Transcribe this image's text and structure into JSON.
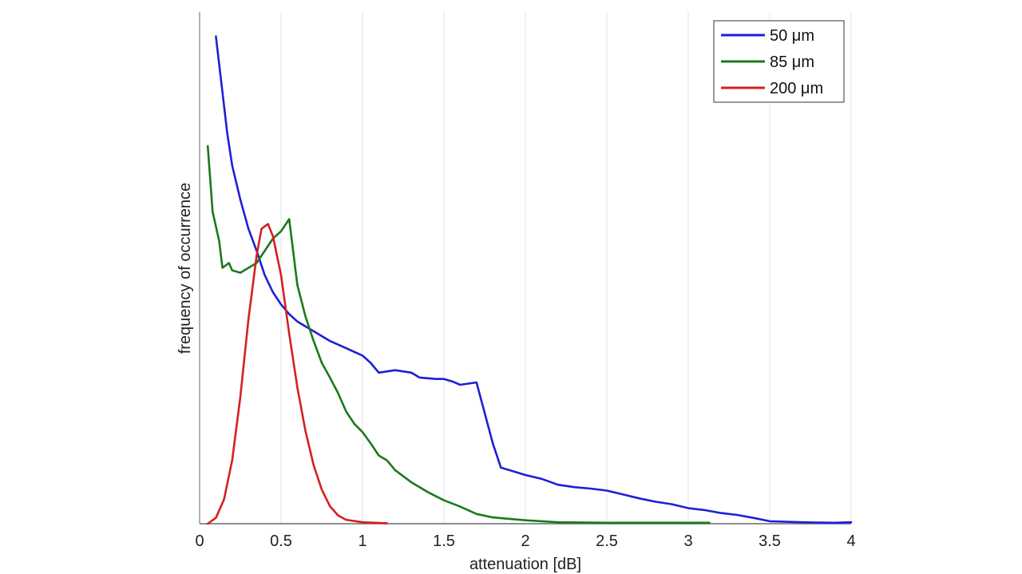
{
  "chart_data": {
    "type": "line",
    "title": "",
    "xlabel": "attenuation [dB]",
    "ylabel": "frequency of occurrence",
    "xlim": [
      0,
      4
    ],
    "ylim": [
      0,
      1.05
    ],
    "x_ticks": [
      "0",
      "0.5",
      "1",
      "1.5",
      "2",
      "2.5",
      "3",
      "3.5",
      "4"
    ],
    "x_tick_values": [
      0,
      0.5,
      1,
      1.5,
      2,
      2.5,
      3,
      3.5,
      4
    ],
    "y_tick_labels": false,
    "grid": "vertical",
    "legend_position": "top-right",
    "series": [
      {
        "name": "50 μm",
        "color": "#1f1fd6",
        "points": [
          [
            0.1,
            1.0
          ],
          [
            0.13,
            0.915
          ],
          [
            0.17,
            0.8
          ],
          [
            0.2,
            0.735
          ],
          [
            0.25,
            0.665
          ],
          [
            0.3,
            0.605
          ],
          [
            0.35,
            0.56
          ],
          [
            0.4,
            0.51
          ],
          [
            0.45,
            0.475
          ],
          [
            0.5,
            0.45
          ],
          [
            0.55,
            0.43
          ],
          [
            0.6,
            0.415
          ],
          [
            0.7,
            0.395
          ],
          [
            0.8,
            0.375
          ],
          [
            0.9,
            0.36
          ],
          [
            1.0,
            0.345
          ],
          [
            1.05,
            0.33
          ],
          [
            1.1,
            0.31
          ],
          [
            1.2,
            0.315
          ],
          [
            1.3,
            0.31
          ],
          [
            1.35,
            0.3
          ],
          [
            1.45,
            0.297
          ],
          [
            1.5,
            0.297
          ],
          [
            1.55,
            0.292
          ],
          [
            1.6,
            0.285
          ],
          [
            1.7,
            0.29
          ],
          [
            1.8,
            0.165
          ],
          [
            1.85,
            0.115
          ],
          [
            1.9,
            0.11
          ],
          [
            2.0,
            0.1
          ],
          [
            2.1,
            0.092
          ],
          [
            2.2,
            0.08
          ],
          [
            2.3,
            0.075
          ],
          [
            2.4,
            0.072
          ],
          [
            2.5,
            0.068
          ],
          [
            2.6,
            0.06
          ],
          [
            2.7,
            0.052
          ],
          [
            2.8,
            0.045
          ],
          [
            2.9,
            0.04
          ],
          [
            3.0,
            0.032
          ],
          [
            3.1,
            0.028
          ],
          [
            3.2,
            0.022
          ],
          [
            3.3,
            0.018
          ],
          [
            3.4,
            0.012
          ],
          [
            3.5,
            0.005
          ],
          [
            3.7,
            0.003
          ],
          [
            3.9,
            0.002
          ],
          [
            4.0,
            0.003
          ]
        ]
      },
      {
        "name": "85 μm",
        "color": "#1a7a1a",
        "points": [
          [
            0.05,
            0.775
          ],
          [
            0.08,
            0.64
          ],
          [
            0.12,
            0.58
          ],
          [
            0.14,
            0.525
          ],
          [
            0.18,
            0.535
          ],
          [
            0.2,
            0.52
          ],
          [
            0.25,
            0.515
          ],
          [
            0.3,
            0.525
          ],
          [
            0.35,
            0.535
          ],
          [
            0.4,
            0.56
          ],
          [
            0.45,
            0.585
          ],
          [
            0.5,
            0.6
          ],
          [
            0.55,
            0.625
          ],
          [
            0.6,
            0.49
          ],
          [
            0.65,
            0.425
          ],
          [
            0.7,
            0.375
          ],
          [
            0.75,
            0.33
          ],
          [
            0.8,
            0.3
          ],
          [
            0.85,
            0.268
          ],
          [
            0.9,
            0.23
          ],
          [
            0.95,
            0.205
          ],
          [
            1.0,
            0.188
          ],
          [
            1.05,
            0.165
          ],
          [
            1.1,
            0.14
          ],
          [
            1.15,
            0.13
          ],
          [
            1.2,
            0.11
          ],
          [
            1.3,
            0.085
          ],
          [
            1.4,
            0.065
          ],
          [
            1.5,
            0.048
          ],
          [
            1.6,
            0.035
          ],
          [
            1.7,
            0.02
          ],
          [
            1.8,
            0.013
          ],
          [
            2.0,
            0.007
          ],
          [
            2.2,
            0.003
          ],
          [
            2.5,
            0.002
          ],
          [
            3.13,
            0.002
          ]
        ]
      },
      {
        "name": "200 μm",
        "color": "#d42020",
        "points": [
          [
            0.05,
            0.0
          ],
          [
            0.1,
            0.012
          ],
          [
            0.15,
            0.05
          ],
          [
            0.2,
            0.13
          ],
          [
            0.25,
            0.26
          ],
          [
            0.3,
            0.42
          ],
          [
            0.35,
            0.55
          ],
          [
            0.38,
            0.605
          ],
          [
            0.42,
            0.615
          ],
          [
            0.45,
            0.59
          ],
          [
            0.5,
            0.51
          ],
          [
            0.55,
            0.39
          ],
          [
            0.6,
            0.28
          ],
          [
            0.65,
            0.19
          ],
          [
            0.7,
            0.12
          ],
          [
            0.75,
            0.07
          ],
          [
            0.8,
            0.036
          ],
          [
            0.85,
            0.017
          ],
          [
            0.9,
            0.008
          ],
          [
            1.0,
            0.003
          ],
          [
            1.15,
            0.001
          ]
        ]
      }
    ]
  }
}
